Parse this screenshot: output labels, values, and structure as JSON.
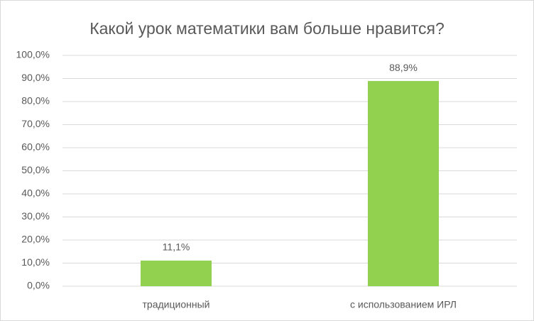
{
  "chart_data": {
    "type": "bar",
    "title": "Какой урок математики вам больше нравится?",
    "categories": [
      "традиционный",
      "с использованием ИРЛ"
    ],
    "values": [
      11.1,
      88.9
    ],
    "value_labels": [
      "11,1%",
      "88,9%"
    ],
    "color": "#92d050",
    "ylim": [
      0,
      100
    ],
    "yticks": [
      {
        "value": 0,
        "label": "0,0%"
      },
      {
        "value": 10,
        "label": "10,0%"
      },
      {
        "value": 20,
        "label": "20,0%"
      },
      {
        "value": 30,
        "label": "30,0%"
      },
      {
        "value": 40,
        "label": "40,0%"
      },
      {
        "value": 50,
        "label": "50,0%"
      },
      {
        "value": 60,
        "label": "60,0%"
      },
      {
        "value": 70,
        "label": "70,0%"
      },
      {
        "value": 80,
        "label": "80,0%"
      },
      {
        "value": 90,
        "label": "90,0%"
      },
      {
        "value": 100,
        "label": "100,0%"
      }
    ],
    "grid": true
  }
}
